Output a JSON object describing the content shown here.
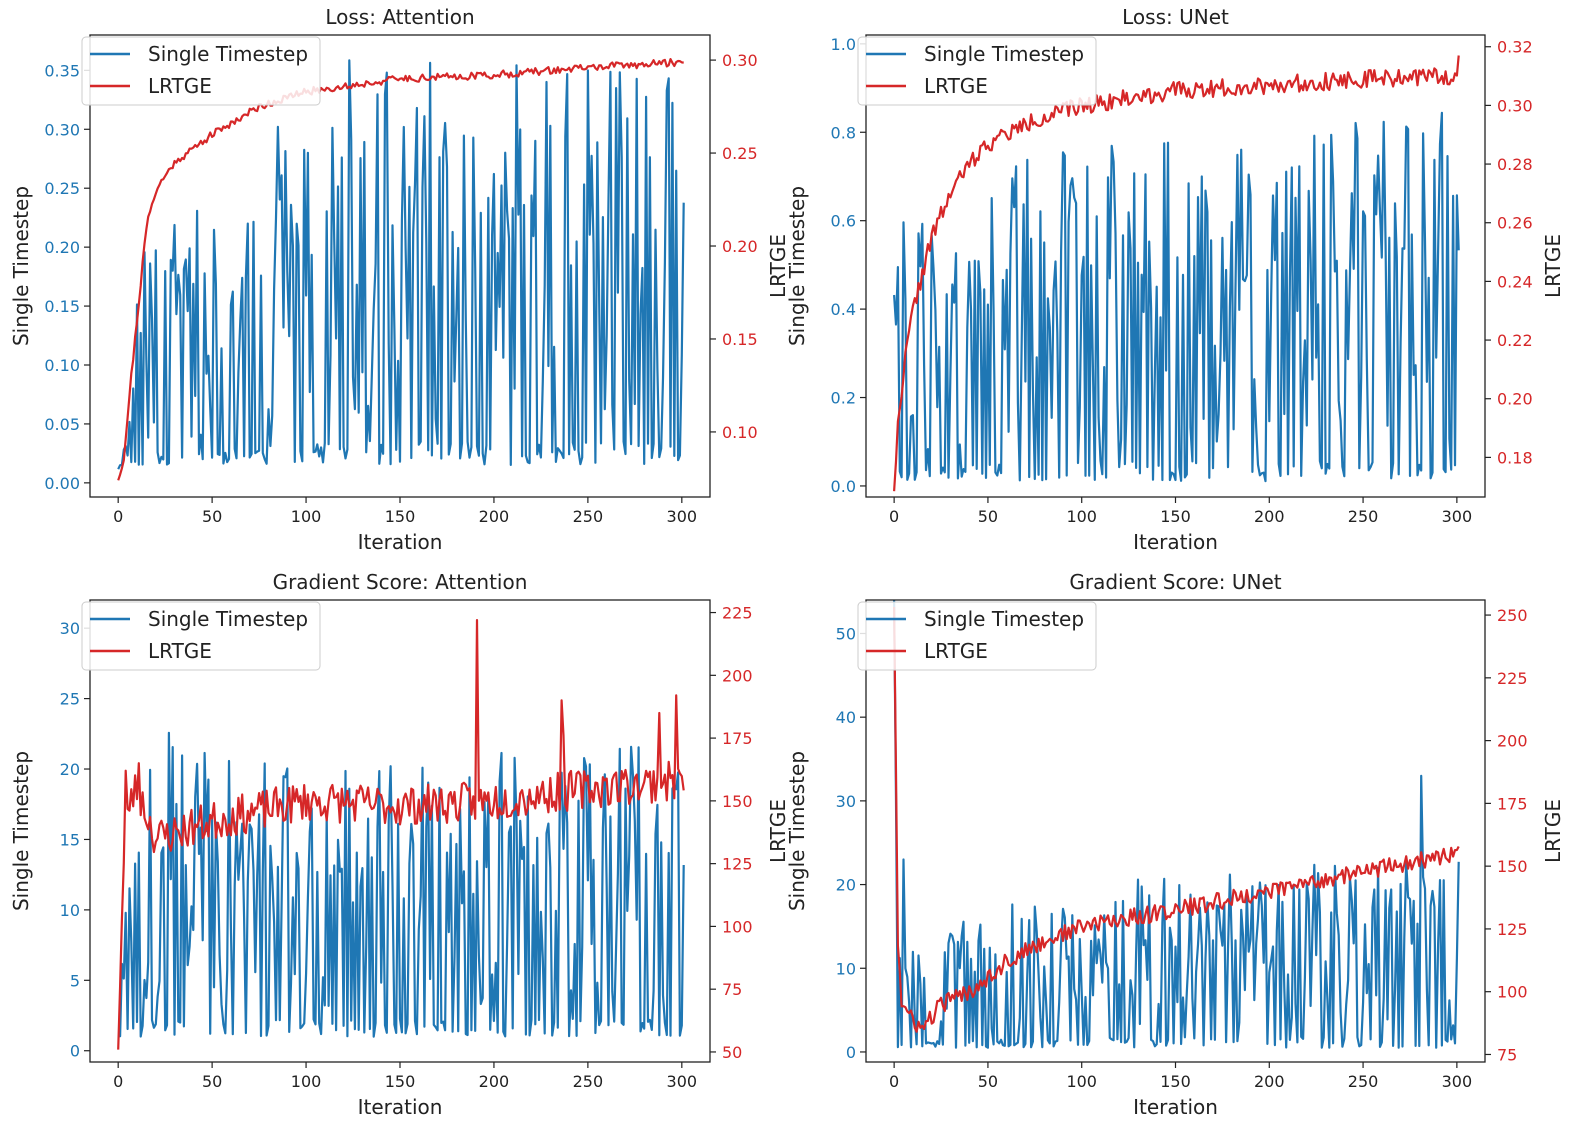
{
  "figure": {
    "x_label": "Iteration"
  },
  "colors": {
    "single_timestep": "#1f77b4",
    "lrtge": "#d62728"
  },
  "chart_data": [
    {
      "type": "line",
      "title": "Loss: Attention",
      "xlabel": "Iteration",
      "ylabel_left": "Single Timestep",
      "ylabel_right": "LRTGE",
      "xlim": [
        -15,
        315
      ],
      "xticks": [
        0,
        50,
        100,
        150,
        200,
        250,
        300
      ],
      "ylim_left": [
        -0.012,
        0.38
      ],
      "yticks_left": [
        "0.00",
        "0.05",
        "0.10",
        "0.15",
        "0.20",
        "0.25",
        "0.30",
        "0.35"
      ],
      "ylim_right": [
        0.065,
        0.3135
      ],
      "yticks_right": [
        "0.10",
        "0.15",
        "0.20",
        "0.25",
        "0.30"
      ],
      "legend": [
        "Single Timestep",
        "LRTGE"
      ],
      "series": [
        {
          "name": "Single Timestep",
          "axis": "left",
          "kind": "oscillating",
          "anchors": [
            [
              0,
              0.01
            ],
            [
              2,
              0.02
            ],
            [
              5,
              0.05
            ],
            [
              8,
              0.1
            ],
            [
              10,
              0.17
            ],
            [
              12,
              0.2
            ],
            [
              40,
              0.23
            ],
            [
              120,
              0.36
            ],
            [
              300,
              0.35
            ]
          ],
          "floor": 0.015,
          "seed": 11
        },
        {
          "name": "LRTGE",
          "axis": "right",
          "kind": "smooth",
          "anchors": [
            [
              0,
              0.075
            ],
            [
              3,
              0.085
            ],
            [
              6,
              0.12
            ],
            [
              10,
              0.16
            ],
            [
              15,
              0.21
            ],
            [
              20,
              0.23
            ],
            [
              30,
              0.245
            ],
            [
              50,
              0.26
            ],
            [
              75,
              0.275
            ],
            [
              100,
              0.283
            ],
            [
              150,
              0.29
            ],
            [
              200,
              0.292
            ],
            [
              250,
              0.296
            ],
            [
              300,
              0.299
            ]
          ],
          "noise": 0.002,
          "seed": 21
        }
      ]
    },
    {
      "type": "line",
      "title": "Loss: UNet",
      "xlabel": "Iteration",
      "ylabel_left": "Single Timestep",
      "ylabel_right": "LRTGE",
      "xlim": [
        -15,
        315
      ],
      "xticks": [
        0,
        50,
        100,
        150,
        200,
        250,
        300
      ],
      "ylim_left": [
        -0.025,
        1.02
      ],
      "yticks_left": [
        "0.0",
        "0.2",
        "0.4",
        "0.6",
        "0.8",
        "1.0"
      ],
      "ylim_right": [
        0.1665,
        0.324
      ],
      "yticks_right": [
        "0.18",
        "0.20",
        "0.22",
        "0.24",
        "0.26",
        "0.28",
        "0.30",
        "0.32"
      ],
      "legend": [
        "Single Timestep",
        "LRTGE"
      ],
      "series": [
        {
          "name": "Single Timestep",
          "axis": "left",
          "kind": "oscillating",
          "anchors": [
            [
              0,
              0.6
            ],
            [
              30,
              0.65
            ],
            [
              100,
              0.8
            ],
            [
              300,
              0.85
            ]
          ],
          "floor": 0.01,
          "seed": 12
        },
        {
          "name": "LRTGE",
          "axis": "right",
          "kind": "smooth",
          "anchors": [
            [
              0,
              0.17
            ],
            [
              2,
              0.19
            ],
            [
              5,
              0.21
            ],
            [
              10,
              0.23
            ],
            [
              20,
              0.255
            ],
            [
              30,
              0.27
            ],
            [
              40,
              0.28
            ],
            [
              50,
              0.287
            ],
            [
              75,
              0.295
            ],
            [
              100,
              0.3
            ],
            [
              150,
              0.305
            ],
            [
              200,
              0.307
            ],
            [
              250,
              0.309
            ],
            [
              300,
              0.31
            ],
            [
              301,
              0.318
            ]
          ],
          "noise": 0.003,
          "seed": 22
        }
      ]
    },
    {
      "type": "line",
      "title": "Gradient Score: Attention",
      "xlabel": "Iteration",
      "ylabel_left": "Single Timestep",
      "ylabel_right": "LRTGE",
      "xlim": [
        -15,
        315
      ],
      "xticks": [
        0,
        50,
        100,
        150,
        200,
        250,
        300
      ],
      "ylim_left": [
        -0.8,
        32.0
      ],
      "yticks_left": [
        "0",
        "5",
        "10",
        "15",
        "20",
        "25",
        "30"
      ],
      "ylim_right": [
        46.0,
        230.0
      ],
      "yticks_right": [
        "50",
        "75",
        "100",
        "125",
        "150",
        "175",
        "200",
        "225"
      ],
      "legend": [
        "Single Timestep",
        "LRTGE"
      ],
      "series": [
        {
          "name": "Single Timestep",
          "axis": "left",
          "kind": "oscillating",
          "anchors": [
            [
              0,
              1
            ],
            [
              3,
              12
            ],
            [
              8,
              20
            ],
            [
              15,
              24
            ],
            [
              50,
              21
            ],
            [
              150,
              22
            ],
            [
              300,
              22
            ]
          ],
          "floor": 1.0,
          "seed": 13
        },
        {
          "name": "LRTGE",
          "axis": "right",
          "kind": "smooth",
          "anchors": [
            [
              0,
              55
            ],
            [
              3,
              125
            ],
            [
              6,
              150
            ],
            [
              10,
              155
            ],
            [
              20,
              135
            ],
            [
              50,
              142
            ],
            [
              100,
              150
            ],
            [
              150,
              148
            ],
            [
              200,
              150
            ],
            [
              250,
              155
            ],
            [
              300,
              158
            ]
          ],
          "noise": 8,
          "seed": 23,
          "spikes": [
            [
              191,
              222
            ],
            [
              236,
              190
            ],
            [
              237,
              176
            ],
            [
              297,
              192
            ],
            [
              288,
              185
            ],
            [
              4,
              162
            ],
            [
              11,
              165
            ]
          ]
        }
      ]
    },
    {
      "type": "line",
      "title": "Gradient Score: UNet",
      "xlabel": "Iteration",
      "ylabel_left": "Single Timestep",
      "ylabel_right": "LRTGE",
      "xlim": [
        -15,
        315
      ],
      "xticks": [
        0,
        50,
        100,
        150,
        200,
        250,
        300
      ],
      "ylim_left": [
        -1.2,
        54.0
      ],
      "yticks_left": [
        "0",
        "10",
        "20",
        "30",
        "40",
        "50"
      ],
      "ylim_right": [
        72.0,
        256.0
      ],
      "yticks_right": [
        "75",
        "100",
        "125",
        "150",
        "175",
        "200",
        "225",
        "250"
      ],
      "legend": [
        "Single Timestep",
        "LRTGE"
      ],
      "series": [
        {
          "name": "Single Timestep",
          "axis": "left",
          "kind": "oscillating",
          "anchors": [
            [
              0,
              14
            ],
            [
              10,
              16
            ],
            [
              50,
              17
            ],
            [
              150,
              22
            ],
            [
              300,
              23
            ]
          ],
          "floor": 0.5,
          "seed": 14,
          "spikes": [
            [
              0,
              54
            ],
            [
              1,
              30
            ],
            [
              5,
              23
            ],
            [
              281,
              33
            ]
          ]
        },
        {
          "name": "LRTGE",
          "axis": "right",
          "kind": "smooth",
          "anchors": [
            [
              0,
              255
            ],
            [
              2,
              120
            ],
            [
              4,
              95
            ],
            [
              8,
              90
            ],
            [
              15,
              85
            ],
            [
              25,
              95
            ],
            [
              40,
              100
            ],
            [
              60,
              112
            ],
            [
              80,
              120
            ],
            [
              100,
              126
            ],
            [
              130,
              130
            ],
            [
              160,
              134
            ],
            [
              200,
              140
            ],
            [
              250,
              148
            ],
            [
              280,
              152
            ],
            [
              300,
              155
            ],
            [
              301,
              160
            ]
          ],
          "noise": 3.5,
          "seed": 24
        }
      ]
    }
  ]
}
